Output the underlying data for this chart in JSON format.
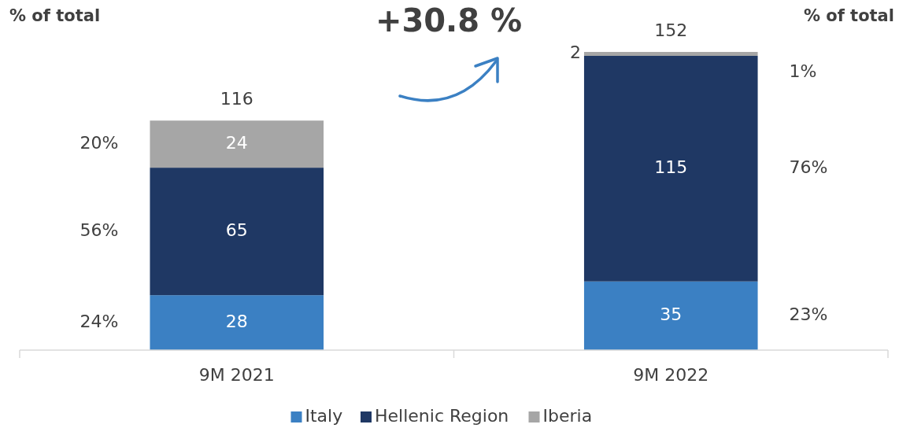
{
  "chart_data": {
    "type": "bar",
    "title": "+30.8 %",
    "stacked": true,
    "data_labels": true,
    "legend": "bottom",
    "categories": [
      "9M 2021",
      "9M 2022"
    ],
    "series": [
      {
        "name": "Italy",
        "color": "#3b80c3",
        "values": [
          28,
          35
        ]
      },
      {
        "name": "Hellenic Region",
        "color": "#1f3864",
        "values": [
          65,
          115
        ]
      },
      {
        "name": "Iberia",
        "color": "#a6a6a6",
        "values": [
          24,
          2
        ]
      }
    ],
    "totals": [
      "116",
      "152"
    ],
    "annotations": [
      "% of total",
      "% of total",
      "24%",
      "56%",
      "20%",
      "23%",
      "76%",
      "1%"
    ]
  }
}
